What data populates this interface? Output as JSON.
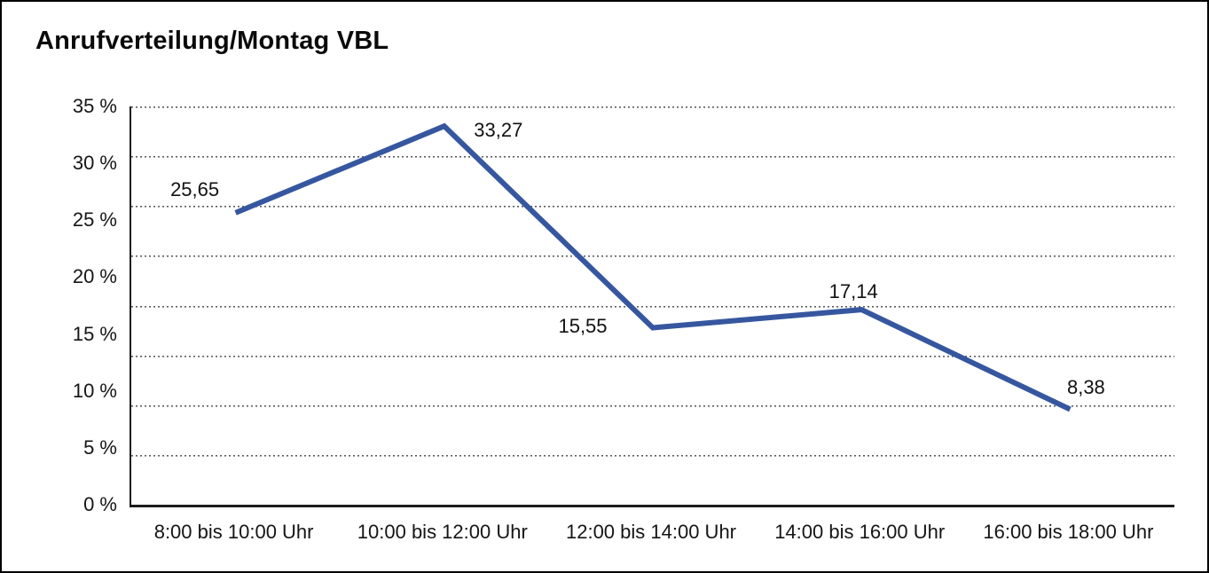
{
  "chart_data": {
    "type": "line",
    "title": "Anrufverteilung/Montag VBL",
    "categories": [
      "8:00 bis 10:00 Uhr",
      "10:00 bis 12:00 Uhr",
      "12:00 bis 14:00 Uhr",
      "14:00 bis 16:00 Uhr",
      "16:00 bis 18:00 Uhr"
    ],
    "values": [
      25.65,
      33.27,
      15.55,
      17.14,
      8.38
    ],
    "value_labels": [
      "25,65",
      "33,27",
      "15,55",
      "17,14",
      "8,38"
    ],
    "unit": "%",
    "xlabel": "",
    "ylabel": "",
    "ylim": [
      0,
      35
    ],
    "y_tick_labels": [
      "35 %",
      "30 %",
      "25 %",
      "20 %",
      "15 %",
      "10 %",
      "5 %",
      "0 %"
    ],
    "grid": "horizontal-dotted",
    "dotted_gridline_count": 8,
    "legend": "none",
    "line_color": "#36579F",
    "axis_color": "#1c1c1c",
    "background_color": "#ffffff"
  }
}
